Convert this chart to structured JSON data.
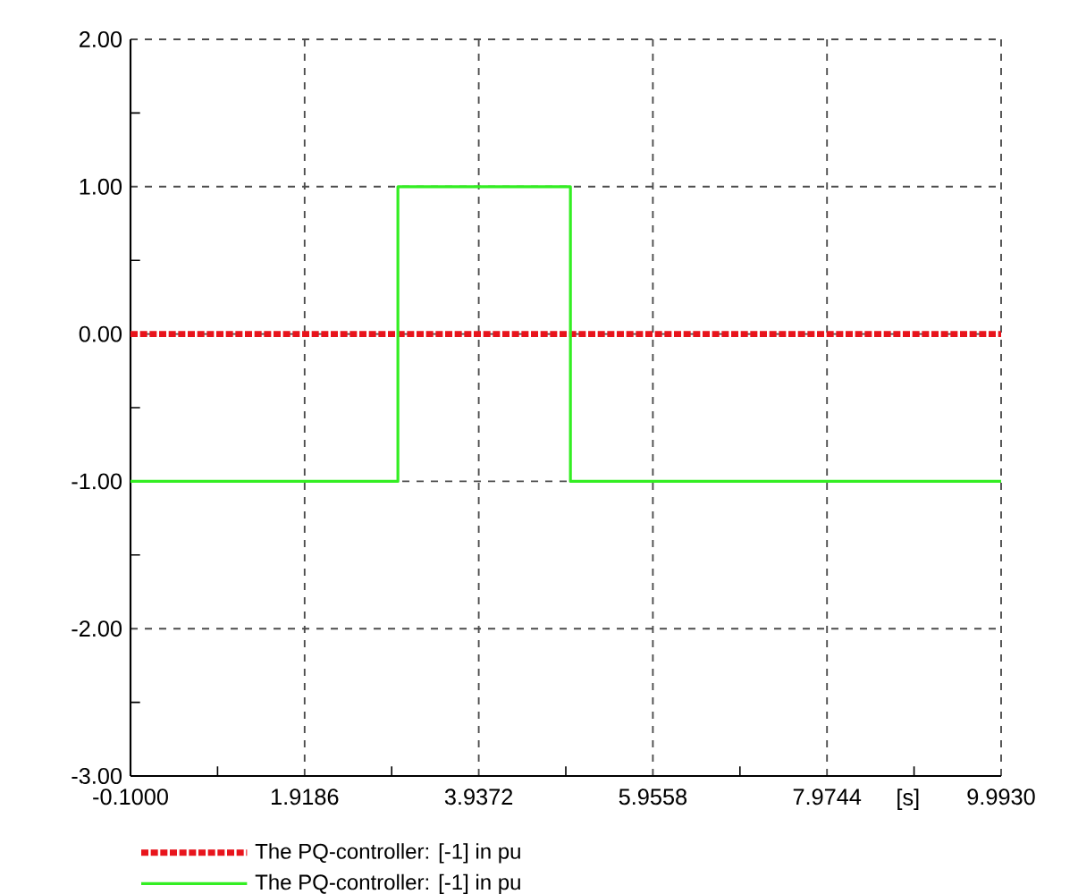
{
  "chart_data": {
    "type": "line",
    "xlabel": "[s]",
    "xlim": [
      -0.1,
      9.993
    ],
    "ylim": [
      -3,
      2
    ],
    "xticks": [
      {
        "value": -0.1,
        "label": "-0.1000"
      },
      {
        "value": 1.9186,
        "label": "1.9186"
      },
      {
        "value": 3.9372,
        "label": "3.9372"
      },
      {
        "value": 5.9558,
        "label": "5.9558"
      },
      {
        "value": 7.9744,
        "label": "7.9744"
      },
      {
        "value": 9.993,
        "label": "9.9930"
      }
    ],
    "yticks": [
      {
        "value": -3,
        "label": "-3.00"
      },
      {
        "value": -2,
        "label": "-2.00"
      },
      {
        "value": -1,
        "label": "-1.00"
      },
      {
        "value": 0,
        "label": "0.00"
      },
      {
        "value": 1,
        "label": "1.00"
      },
      {
        "value": 2,
        "label": "2.00"
      }
    ],
    "grid": true,
    "legend": "bottom",
    "marker": "none",
    "series": [
      {
        "name": "The PQ-controller: [-1] in pu",
        "color": "#e8141c",
        "line_style": "dotted",
        "x": [
          -0.1,
          9.993
        ],
        "values": [
          0,
          0
        ]
      },
      {
        "name": "The PQ-controller: [-1] in pu",
        "color": "#33ee22",
        "line_style": "solid",
        "x": [
          -0.1,
          3.0,
          3.0,
          5.0,
          5.0,
          9.993
        ],
        "values": [
          -1,
          -1,
          1,
          1,
          -1,
          -1
        ]
      }
    ]
  }
}
